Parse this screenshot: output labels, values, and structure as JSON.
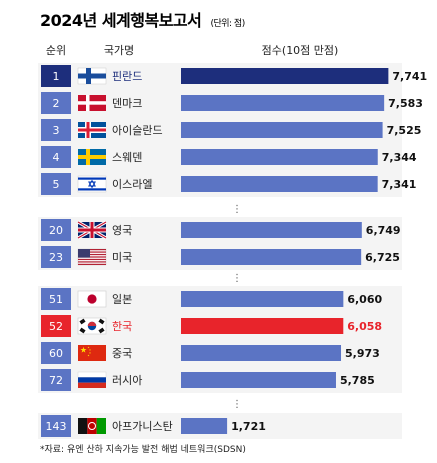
{
  "chart_data": {
    "type": "bar",
    "title": "2024년 세계행복보고서",
    "subtitle": "(단위: 점)",
    "headers": {
      "rank": "순위",
      "country": "국가명",
      "score": "점수(10점 만점)"
    },
    "xlim": [
      0,
      8.1
    ],
    "rows": [
      {
        "rank": "1",
        "name": "핀란드",
        "value": 7.741,
        "label": "7,741",
        "flag": "finland-flag",
        "highlight": "top"
      },
      {
        "rank": "2",
        "name": "덴마크",
        "value": 7.583,
        "label": "7,583",
        "flag": "denmark-flag",
        "highlight": ""
      },
      {
        "rank": "3",
        "name": "아이슬란드",
        "value": 7.525,
        "label": "7,525",
        "flag": "iceland-flag",
        "highlight": ""
      },
      {
        "rank": "4",
        "name": "스웨덴",
        "value": 7.344,
        "label": "7,344",
        "flag": "sweden-flag",
        "highlight": ""
      },
      {
        "rank": "5",
        "name": "이스라엘",
        "value": 7.341,
        "label": "7,341",
        "flag": "israel-flag",
        "highlight": ""
      },
      {
        "rank": "20",
        "name": "영국",
        "value": 6.749,
        "label": "6,749",
        "flag": "uk-flag",
        "highlight": ""
      },
      {
        "rank": "23",
        "name": "미국",
        "value": 6.725,
        "label": "6,725",
        "flag": "usa-flag",
        "highlight": ""
      },
      {
        "rank": "51",
        "name": "일본",
        "value": 6.06,
        "label": "6,060",
        "flag": "japan-flag",
        "highlight": ""
      },
      {
        "rank": "52",
        "name": "한국",
        "value": 6.058,
        "label": "6,058",
        "flag": "korea-flag",
        "highlight": "korea"
      },
      {
        "rank": "60",
        "name": "중국",
        "value": 5.973,
        "label": "5,973",
        "flag": "china-flag",
        "highlight": ""
      },
      {
        "rank": "72",
        "name": "러시아",
        "value": 5.785,
        "label": "5,785",
        "flag": "russia-flag",
        "highlight": ""
      },
      {
        "rank": "143",
        "name": "아프가니스탄",
        "value": 1.721,
        "label": "1,721",
        "flag": "afghanistan-flag",
        "highlight": ""
      }
    ],
    "separator": "⋮",
    "colors": {
      "bar": "#5b74c4",
      "bar_top": "#1d2e7c",
      "bar_korea": "#e8242b",
      "rank_box": "#5b74c4",
      "rank_box_top": "#1d2e7c",
      "rank_box_korea": "#e8242b",
      "korea_text": "#e8242b",
      "top_text": "#1d2e7c",
      "panel": "#f4f4f4"
    }
  },
  "source": "*자료: 유엔 산하 지속가능 발전 해법 네트워크(SDSN)"
}
